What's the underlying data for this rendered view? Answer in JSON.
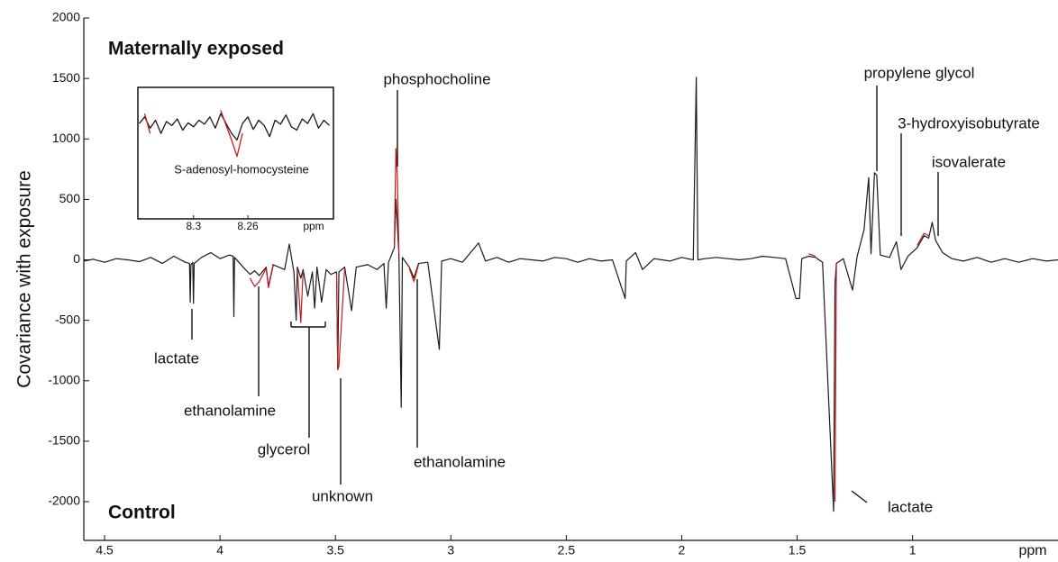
{
  "chart_data": [
    {
      "type": "line",
      "ylabel": "Covariance with exposure",
      "xlabel": "ppm",
      "xlim": [
        4.59,
        0.37
      ],
      "ylim": [
        -2320,
        2000
      ],
      "xticks": [
        4.5,
        4,
        3.5,
        3,
        2.5,
        2,
        1.5,
        1
      ],
      "yticks": [
        -2000,
        -1500,
        -1000,
        -500,
        0,
        500,
        1000,
        1500,
        2000
      ],
      "annotations": [
        "Maternally exposed",
        "Control",
        "phosphocholine",
        "propylene glycol",
        "3-hydroxyisobutyrate",
        "isovalerate",
        "lactate",
        "ethanolamine",
        "glycerol",
        "unknown",
        "ethanolamine",
        "lactate"
      ],
      "x": [
        4.59,
        4.55,
        4.5,
        4.45,
        4.4,
        4.35,
        4.3,
        4.25,
        4.2,
        4.15,
        4.132,
        4.129,
        4.126,
        4.118,
        4.115,
        4.112,
        4.08,
        4.04,
        4.0,
        3.96,
        3.943,
        3.94,
        3.937,
        3.9,
        3.87,
        3.85,
        3.83,
        3.8,
        3.79,
        3.77,
        3.72,
        3.7,
        3.68,
        3.67,
        3.665,
        3.65,
        3.64,
        3.62,
        3.6,
        3.59,
        3.58,
        3.56,
        3.54,
        3.52,
        3.495,
        3.49,
        3.485,
        3.46,
        3.43,
        3.41,
        3.36,
        3.32,
        3.29,
        3.28,
        3.27,
        3.245,
        3.238,
        3.232,
        3.225,
        3.215,
        3.21,
        3.18,
        3.16,
        3.14,
        3.1,
        3.05,
        3.04,
        3.0,
        2.95,
        2.88,
        2.85,
        2.8,
        2.75,
        2.7,
        2.65,
        2.6,
        2.55,
        2.5,
        2.45,
        2.4,
        2.35,
        2.3,
        2.245,
        2.24,
        2.2,
        2.17,
        2.12,
        2.05,
        2.0,
        1.95,
        1.937,
        1.93,
        1.9,
        1.85,
        1.8,
        1.75,
        1.7,
        1.65,
        1.6,
        1.55,
        1.505,
        1.49,
        1.48,
        1.45,
        1.42,
        1.39,
        1.342,
        1.336,
        1.33,
        1.3,
        1.26,
        1.24,
        1.21,
        1.19,
        1.18,
        1.165,
        1.155,
        1.14,
        1.1,
        1.07,
        1.05,
        1.02,
        0.98,
        0.95,
        0.93,
        0.915,
        0.9,
        0.87,
        0.83,
        0.78,
        0.72,
        0.66,
        0.6,
        0.54,
        0.48,
        0.42,
        0.37
      ],
      "series": [
        {
          "color": "#1a1a1a",
          "values": [
            -10,
            5,
            -20,
            10,
            0,
            -15,
            20,
            -30,
            30,
            -20,
            -30,
            -350,
            -40,
            -20,
            -360,
            -30,
            20,
            60,
            10,
            40,
            30,
            -470,
            20,
            -60,
            -120,
            -90,
            -130,
            -60,
            -220,
            -40,
            -80,
            130,
            -100,
            -500,
            -60,
            -150,
            -80,
            -300,
            -100,
            -400,
            -60,
            -350,
            -80,
            -120,
            -100,
            -900,
            -100,
            -60,
            -420,
            -60,
            -40,
            -80,
            -30,
            -400,
            -20,
            100,
            500,
            300,
            40,
            -1220,
            20,
            -60,
            -150,
            -30,
            -20,
            -740,
            -10,
            10,
            -20,
            140,
            -10,
            20,
            -20,
            10,
            0,
            -10,
            20,
            10,
            -20,
            10,
            -10,
            0,
            -320,
            -10,
            60,
            -80,
            10,
            -10,
            20,
            0,
            1510,
            0,
            10,
            20,
            10,
            0,
            10,
            30,
            20,
            10,
            -320,
            -320,
            10,
            30,
            20,
            -20,
            -2080,
            -200,
            -30,
            10,
            -250,
            30,
            250,
            680,
            50,
            720,
            700,
            40,
            20,
            150,
            -80,
            30,
            100,
            200,
            180,
            310,
            160,
            60,
            10,
            -10,
            20,
            -20,
            10,
            -20,
            10,
            -10,
            0
          ]
        },
        {
          "color": "#c8191e",
          "values": [
            null,
            null,
            null,
            null,
            null,
            null,
            null,
            null,
            null,
            null,
            null,
            null,
            null,
            null,
            null,
            null,
            null,
            null,
            null,
            null,
            null,
            null,
            null,
            null,
            -150,
            -220,
            -180,
            -70,
            -230,
            -50,
            null,
            null,
            null,
            null,
            -80,
            -520,
            -90,
            null,
            null,
            null,
            null,
            null,
            null,
            null,
            -110,
            -910,
            -880,
            -70,
            null,
            null,
            null,
            null,
            null,
            null,
            null,
            110,
            920,
            700,
            50,
            null,
            null,
            -70,
            -180,
            -40,
            null,
            null,
            null,
            null,
            null,
            null,
            null,
            null,
            null,
            null,
            null,
            null,
            null,
            null,
            null,
            null,
            null,
            null,
            null,
            null,
            null,
            null,
            null,
            null,
            null,
            null,
            null,
            null,
            null,
            null,
            null,
            null,
            null,
            null,
            null,
            null,
            null,
            null,
            null,
            50,
            30,
            null,
            null,
            -2000,
            -40,
            null,
            null,
            null,
            null,
            null,
            null,
            null,
            null,
            null,
            null,
            null,
            null,
            null,
            120,
            220,
            200,
            null,
            null,
            null,
            null,
            null,
            null,
            null,
            null,
            null,
            null,
            null,
            null
          ]
        }
      ]
    },
    {
      "type": "line",
      "xlabel": "ppm",
      "xlim": [
        8.341,
        8.197
      ],
      "ylim": [
        -1,
        1
      ],
      "xticks": [
        8.3,
        8.26
      ],
      "annotations": [
        "S-adenosyl-homocysteine"
      ],
      "x": [
        8.34,
        8.336,
        8.332,
        8.328,
        8.324,
        8.32,
        8.316,
        8.312,
        8.308,
        8.304,
        8.3,
        8.296,
        8.292,
        8.288,
        8.284,
        8.28,
        8.276,
        8.272,
        8.268,
        8.264,
        8.26,
        8.256,
        8.252,
        8.248,
        8.244,
        8.24,
        8.236,
        8.232,
        8.228,
        8.224,
        8.22,
        8.216,
        8.212,
        8.208,
        8.204,
        8.2
      ],
      "series": [
        {
          "color": "#1a1a1a",
          "values": [
            0.45,
            0.55,
            0.38,
            0.5,
            0.3,
            0.48,
            0.42,
            0.52,
            0.35,
            0.46,
            0.4,
            0.5,
            0.44,
            0.55,
            0.38,
            0.6,
            0.45,
            0.3,
            0.2,
            0.45,
            0.55,
            0.36,
            0.5,
            0.42,
            0.25,
            0.5,
            0.44,
            0.58,
            0.4,
            0.35,
            0.52,
            0.45,
            0.6,
            0.38,
            0.5,
            0.42
          ]
        },
        {
          "color": "#c8191e",
          "values": [
            null,
            0.6,
            0.3,
            null,
            null,
            null,
            null,
            null,
            null,
            null,
            null,
            null,
            null,
            null,
            null,
            0.65,
            0.42,
            0.2,
            -0.05,
            0.3,
            null,
            null,
            null,
            null,
            null,
            null,
            null,
            null,
            null,
            null,
            null,
            null,
            null,
            null,
            null,
            null
          ]
        }
      ]
    }
  ]
}
